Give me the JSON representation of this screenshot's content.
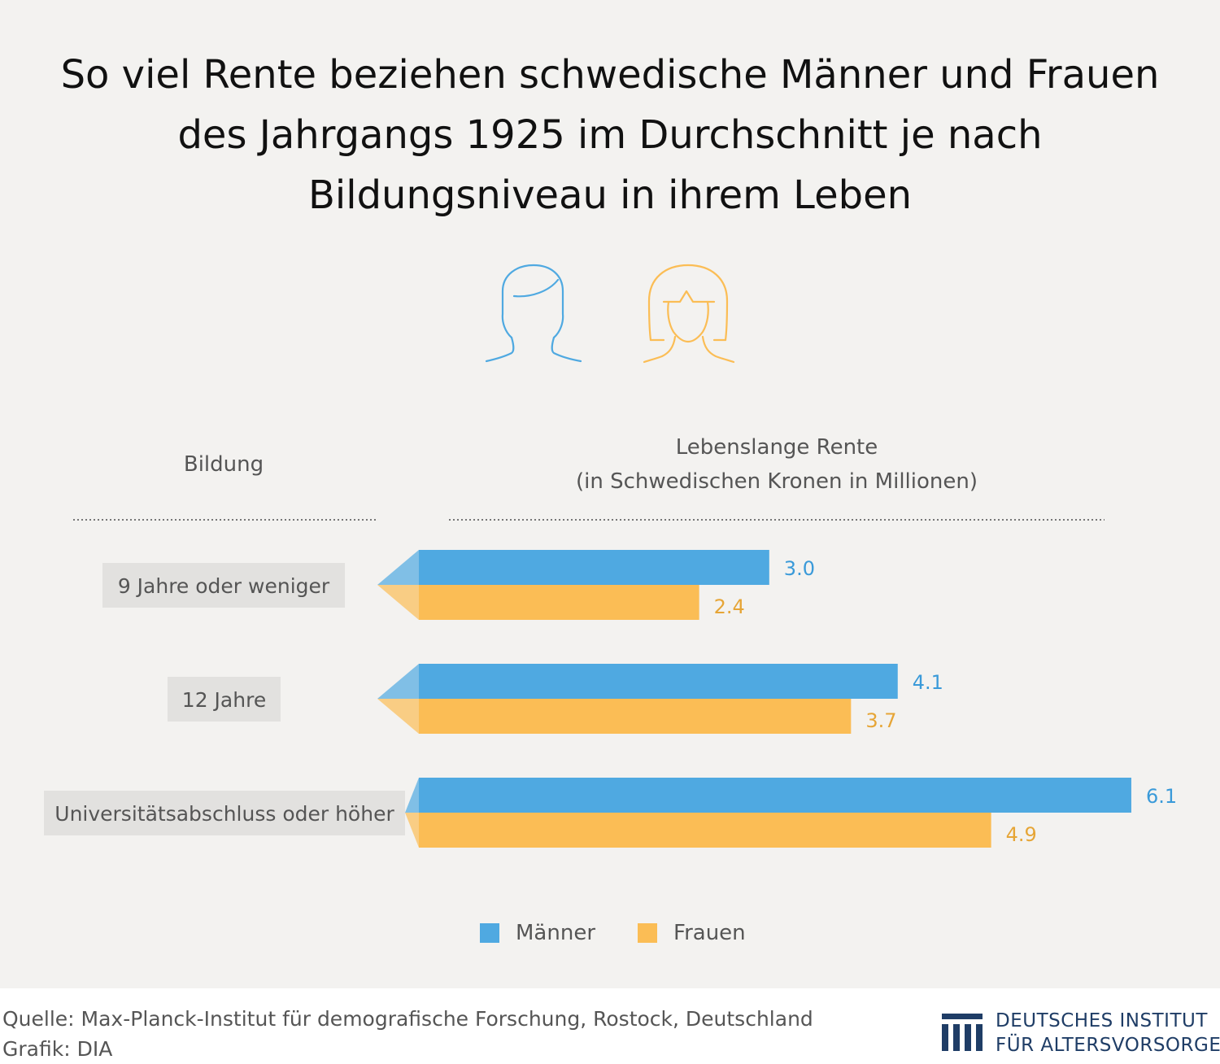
{
  "title": {
    "line1": "So viel Rente beziehen schwedische Männer und Frauen",
    "line2": "des Jahrgangs 1925 im Durchschnitt je nach",
    "line3": "Bildungsniveau in ihrem Leben"
  },
  "icons": {
    "man": "man-head-outline-icon",
    "woman": "woman-head-outline-icon"
  },
  "columns": {
    "education": "Bildung",
    "pension_line1": "Lebenslange Rente",
    "pension_line2": "(in Schwedischen Kronen in Millionen)"
  },
  "colors": {
    "men": "#4fa9e1",
    "women": "#fbbd55",
    "men_label": "#3a9ad9",
    "women_label": "#e6a536",
    "category_box": "#e2e1df",
    "panel": "#f3f2f0",
    "logo": "#1f3d66"
  },
  "chart_data": {
    "type": "bar",
    "orientation": "horizontal",
    "categories": [
      "9 Jahre oder weniger",
      "12 Jahre",
      "Universitätsabschluss oder höher"
    ],
    "series": [
      {
        "name": "Männer",
        "values": [
          3.0,
          4.1,
          6.1
        ]
      },
      {
        "name": "Frauen",
        "values": [
          2.4,
          3.7,
          4.9
        ]
      }
    ],
    "value_labels": {
      "Männer": [
        "3.0",
        "4.1",
        "6.1"
      ],
      "Frauen": [
        "2.4",
        "3.7",
        "4.9"
      ]
    },
    "title": "So viel Rente beziehen schwedische Männer und Frauen des Jahrgangs 1925 im Durchschnitt je nach Bildungsniveau in ihrem Leben",
    "xlabel": "Lebenslange Rente (in Schwedischen Kronen in Millionen)",
    "ylabel": "Bildung",
    "legend": "bottom-center",
    "grid": false
  },
  "legend": {
    "men": "Männer",
    "women": "Frauen"
  },
  "footer": {
    "source": "Quelle: Max-Planck-Institut für demografische Forschung, Rostock, Deutschland",
    "credit": "Grafik: DIA"
  },
  "logo": {
    "line1": "DEUTSCHES INSTITUT",
    "line2": "FÜR ALTERSVORSORGE"
  }
}
